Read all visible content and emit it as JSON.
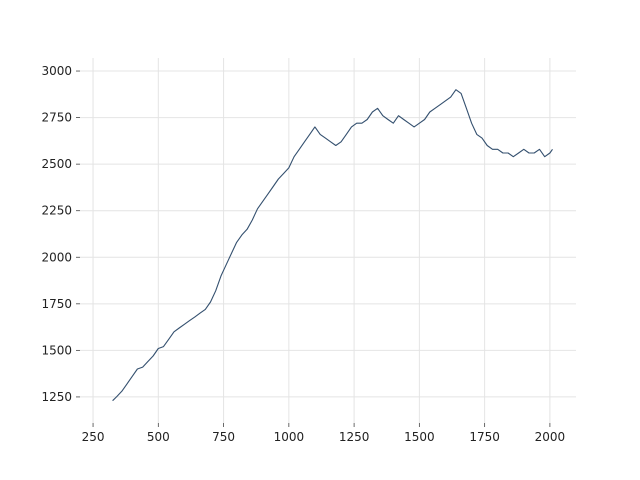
{
  "chart_data": {
    "type": "line",
    "title": "",
    "xlabel": "",
    "ylabel": "",
    "xlim": [
      200,
      2100
    ],
    "ylim": [
      1110,
      3070
    ],
    "x_ticks": [
      250,
      500,
      750,
      1000,
      1250,
      1500,
      1750,
      2000
    ],
    "y_ticks": [
      1250,
      1500,
      1750,
      2000,
      2250,
      2500,
      2750,
      3000
    ],
    "grid": true,
    "legend": "none",
    "line_color": "#34506f",
    "series": [
      {
        "x": [
          325,
          340,
          360,
          380,
          400,
          420,
          440,
          460,
          480,
          500,
          520,
          540,
          560,
          580,
          600,
          620,
          640,
          660,
          680,
          700,
          720,
          740,
          760,
          780,
          800,
          820,
          840,
          860,
          880,
          900,
          920,
          940,
          960,
          980,
          1000,
          1020,
          1040,
          1060,
          1080,
          1100,
          1120,
          1140,
          1160,
          1180,
          1200,
          1220,
          1240,
          1260,
          1280,
          1300,
          1320,
          1340,
          1360,
          1380,
          1400,
          1420,
          1440,
          1460,
          1480,
          1500,
          1520,
          1540,
          1560,
          1580,
          1600,
          1620,
          1640,
          1660,
          1680,
          1700,
          1720,
          1740,
          1760,
          1780,
          1800,
          1820,
          1840,
          1860,
          1880,
          1900,
          1920,
          1940,
          1960,
          1980,
          2000,
          2010
        ],
        "y": [
          1230,
          1250,
          1280,
          1320,
          1360,
          1400,
          1410,
          1440,
          1470,
          1510,
          1520,
          1560,
          1600,
          1620,
          1640,
          1660,
          1680,
          1700,
          1720,
          1760,
          1820,
          1900,
          1960,
          2020,
          2080,
          2120,
          2150,
          2200,
          2260,
          2300,
          2340,
          2380,
          2420,
          2450,
          2480,
          2540,
          2580,
          2620,
          2660,
          2700,
          2660,
          2640,
          2620,
          2600,
          2620,
          2660,
          2700,
          2720,
          2720,
          2740,
          2780,
          2800,
          2760,
          2740,
          2720,
          2760,
          2740,
          2720,
          2700,
          2720,
          2740,
          2780,
          2800,
          2820,
          2840,
          2860,
          2900,
          2880,
          2800,
          2720,
          2660,
          2640,
          2600,
          2580,
          2580,
          2560,
          2560,
          2540,
          2560,
          2580,
          2560,
          2560,
          2580,
          2540,
          2560,
          2580
        ]
      }
    ]
  }
}
